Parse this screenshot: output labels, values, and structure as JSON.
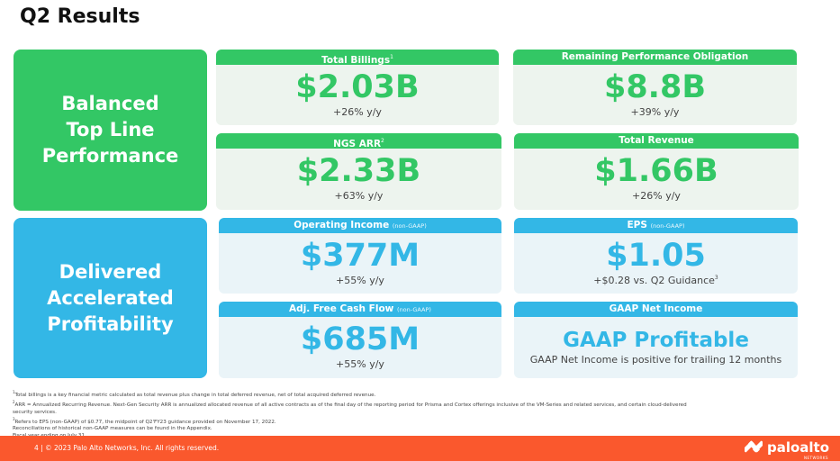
{
  "page": {
    "title": "Q2 Results"
  },
  "left_panels": {
    "top": "Balanced\nTop Line\nPerformance",
    "bottom": "Delivered\nAccelerated\nProfitability"
  },
  "cards": {
    "total_billings": {
      "header": "Total Billings",
      "sup": "1",
      "value": "$2.03B",
      "sub": "+26% y/y"
    },
    "rpo": {
      "header": "Remaining Performance Obligation",
      "value": "$8.8B",
      "sub": "+39% y/y"
    },
    "ngs_arr": {
      "header": "NGS ARR",
      "sup": "2",
      "value": "$2.33B",
      "sub": "+63% y/y"
    },
    "total_revenue": {
      "header": "Total Revenue",
      "value": "$1.66B",
      "sub": "+26% y/y"
    },
    "operating_income": {
      "header": "Operating Income",
      "note": "(non-GAAP)",
      "value": "$377M",
      "sub": "+55% y/y"
    },
    "eps": {
      "header": "EPS",
      "note": "(non-GAAP)",
      "value": "$1.05",
      "sub": "+$0.28 vs. Q2 Guidance",
      "sub_sup": "3"
    },
    "fcf": {
      "header": "Adj. Free Cash Flow",
      "note": "(non-GAAP)",
      "value": "$685M",
      "sub": "+55% y/y"
    },
    "gaap": {
      "header": "GAAP Net Income",
      "value": "GAAP Profitable",
      "sub": "GAAP Net Income is positive for trailing 12 months"
    }
  },
  "footnotes": [
    {
      "sup": "1",
      "text": "Total billings is a key financial metric calculated as total revenue plus change in total deferred revenue, net of total acquired deferred revenue."
    },
    {
      "sup": "2",
      "text": "ARR = Annualized Recurring Revenue. Next-Gen Security ARR is annualized allocated revenue of all active contracts as of the final day of the reporting period for Prisma and Cortex offerings inclusive of the VM-Series and related services, and certain cloud-delivered"
    },
    {
      "sup": "",
      "text": "security services."
    },
    {
      "sup": "3",
      "text": "Refers to EPS (non-GAAP) of $0.77, the midpoint of Q2'FY23 guidance provided on November 17, 2022."
    },
    {
      "sup": "",
      "text": "Reconciliations of historical non-GAAP measures can be found in the Appendix."
    },
    {
      "sup": "",
      "text": "Fiscal year ending on July 31."
    }
  ],
  "footer": {
    "text": "4  |  © 2023 Palo Alto Networks, Inc. All rights reserved.",
    "logo": "paloalto",
    "logo_tag": "NETWORKS"
  },
  "colors": {
    "green": "#33c765",
    "blue": "#33b7e6",
    "orange": "#fa582d"
  }
}
